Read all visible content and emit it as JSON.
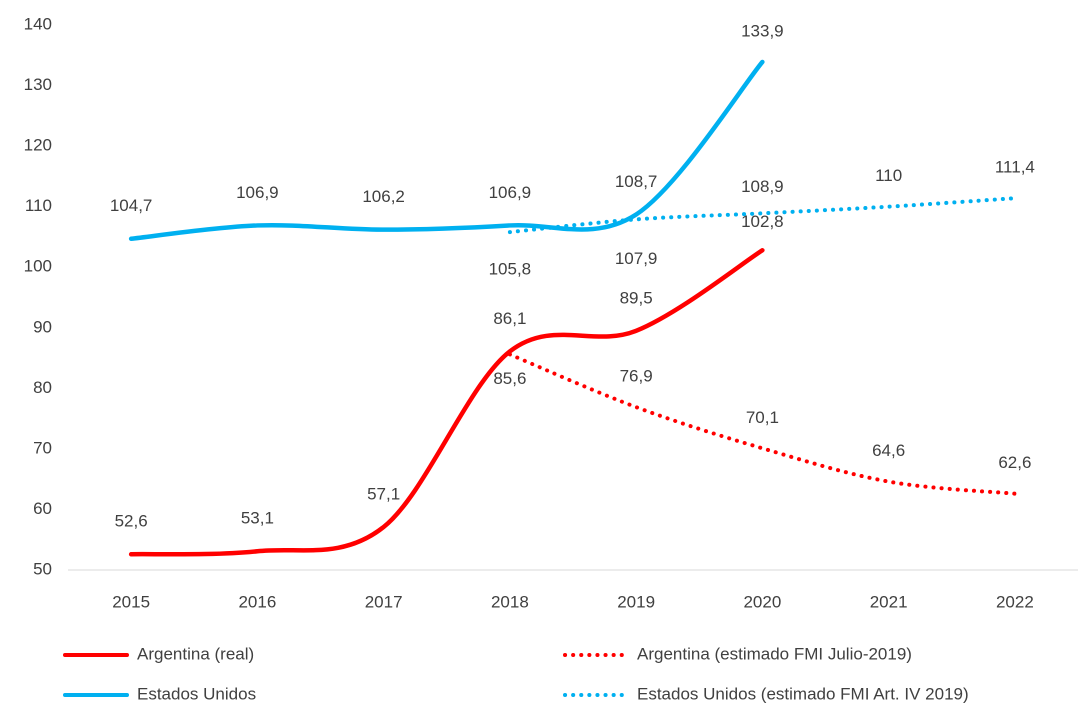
{
  "chart_data": {
    "type": "line",
    "categories": [
      "2015",
      "2016",
      "2017",
      "2018",
      "2019",
      "2020",
      "2021",
      "2022"
    ],
    "series": [
      {
        "name": "Argentina (real)",
        "color": "#ff0000",
        "dash": false,
        "values": [
          52.6,
          53.1,
          57.1,
          86.1,
          89.5,
          102.8,
          null,
          null
        ],
        "value_labels": [
          "52,6",
          "53,1",
          "57,1",
          "86,1",
          "89,5",
          "102,8",
          null,
          null
        ]
      },
      {
        "name": "Argentina (estimado FMI Julio-2019)",
        "color": "#ff0000",
        "dash": true,
        "values": [
          null,
          null,
          null,
          85.6,
          76.9,
          70.1,
          64.6,
          62.6
        ],
        "value_labels": [
          null,
          null,
          null,
          "85,6",
          "76,9",
          "70,1",
          "64,6",
          "62,6"
        ]
      },
      {
        "name": "Estados Unidos",
        "color": "#00b0f0",
        "dash": false,
        "values": [
          104.7,
          106.9,
          106.2,
          106.9,
          108.7,
          133.9,
          null,
          null
        ],
        "value_labels": [
          "104,7",
          "106,9",
          "106,2",
          "106,9",
          "108,7",
          "133,9",
          null,
          null
        ]
      },
      {
        "name": "Estados Unidos (estimado FMI Art. IV 2019)",
        "color": "#00b0f0",
        "dash": true,
        "values": [
          null,
          null,
          null,
          105.8,
          107.9,
          108.9,
          110,
          111.4
        ],
        "value_labels": [
          null,
          null,
          null,
          "105,8",
          "107,9",
          "108,9",
          "110",
          "111,4"
        ]
      }
    ],
    "ylim": [
      50,
      140
    ],
    "yticks": [
      50,
      60,
      70,
      80,
      90,
      100,
      110,
      120,
      130,
      140
    ],
    "grid": false,
    "legend": "bottom"
  }
}
